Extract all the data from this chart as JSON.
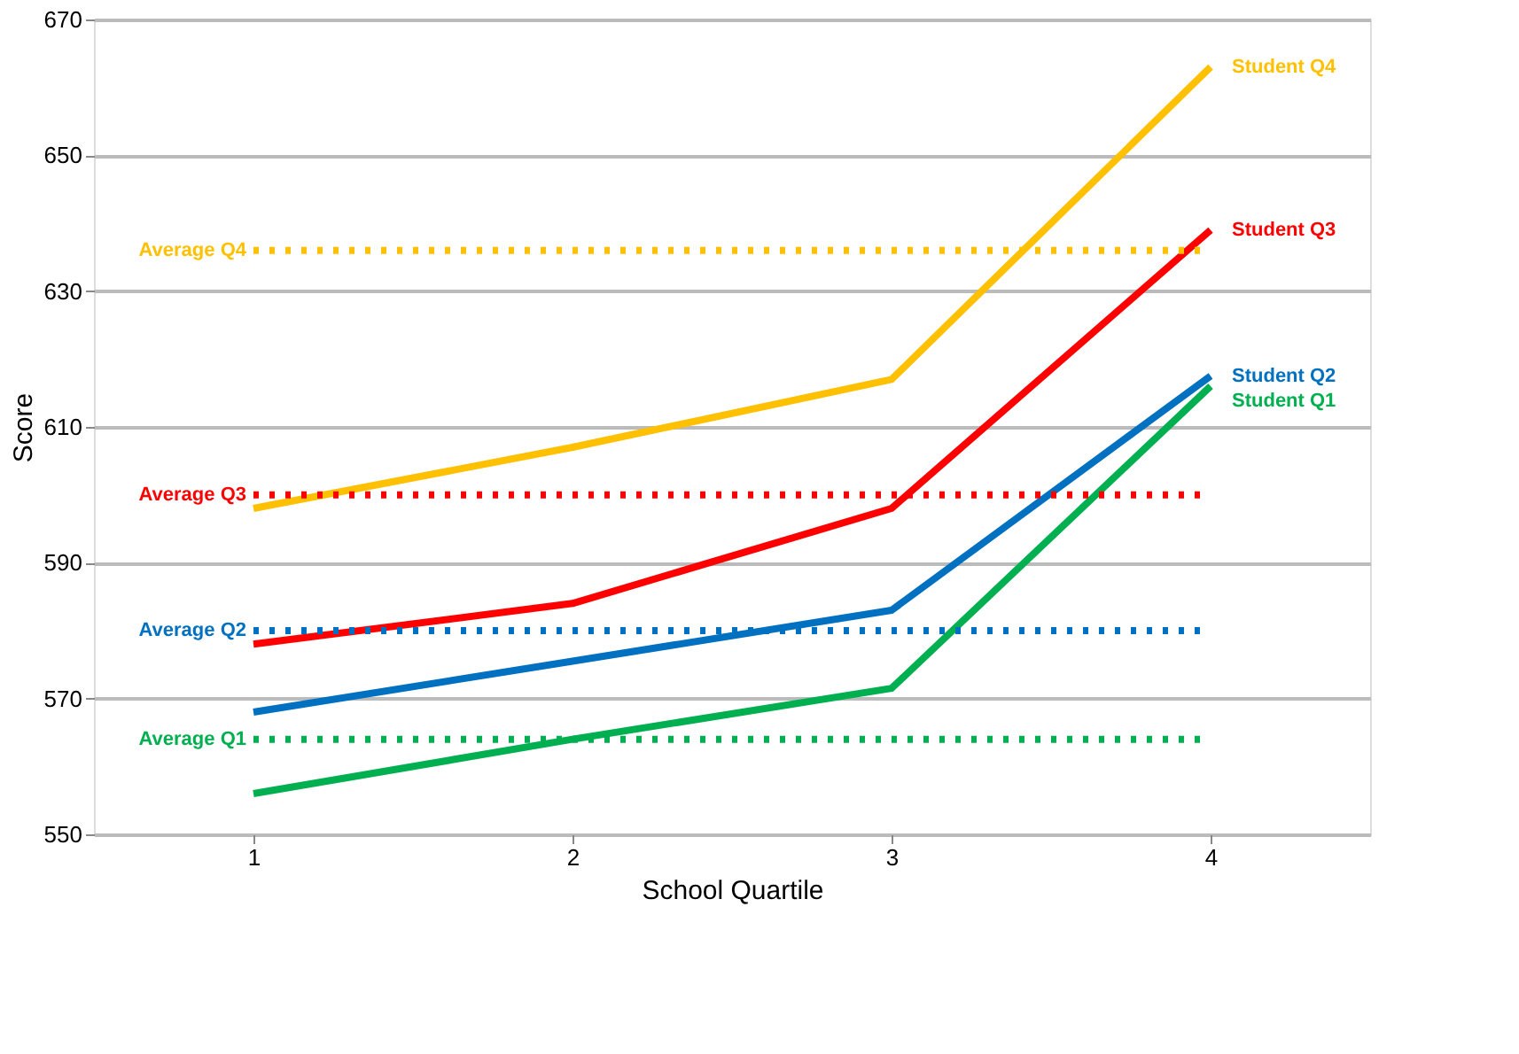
{
  "chart_data": {
    "type": "line",
    "xlabel": "School Quartile",
    "ylabel": "Score",
    "x": [
      1,
      2,
      3,
      4
    ],
    "xlim": [
      0.5,
      4.5
    ],
    "xticks": [
      1,
      2,
      3,
      4
    ],
    "ylim": [
      550,
      670
    ],
    "yticks": [
      550,
      570,
      590,
      610,
      630,
      650,
      670
    ],
    "grid": "y",
    "marker": "none",
    "line_style": "solid",
    "series": [
      {
        "name": "Student Q4",
        "color": "#ffc000",
        "values": [
          598,
          607,
          617,
          663
        ]
      },
      {
        "name": "Student Q3",
        "color": "#ff0000",
        "values": [
          578,
          584,
          598,
          639
        ]
      },
      {
        "name": "Student Q2",
        "color": "#0070c0",
        "values": [
          568,
          575.5,
          583,
          617.5
        ]
      },
      {
        "name": "Student Q1",
        "color": "#00b050",
        "values": [
          556,
          564,
          571.5,
          616
        ]
      }
    ],
    "ref_lines": [
      {
        "axis": "y",
        "value": 636,
        "label": "Average Q4",
        "color": "#ffc000",
        "line_style": "dotted"
      },
      {
        "axis": "y",
        "value": 600,
        "label": "Average Q3",
        "color": "#ff0000",
        "line_style": "dotted"
      },
      {
        "axis": "y",
        "value": 580,
        "label": "Average Q2",
        "color": "#0070c0",
        "line_style": "dotted"
      },
      {
        "axis": "y",
        "value": 564,
        "label": "Average Q1",
        "color": "#00b050",
        "line_style": "dotted"
      }
    ]
  }
}
